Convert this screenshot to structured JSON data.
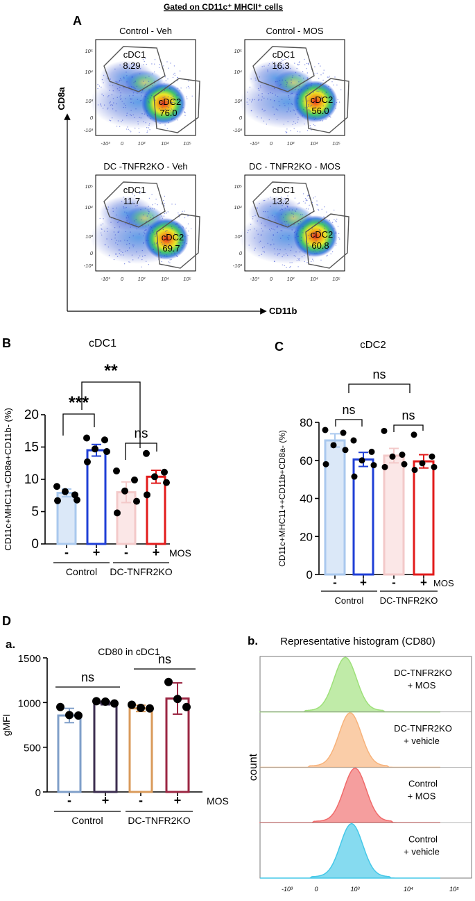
{
  "figure_title": "Gated on CD11c⁺ MHCII⁺ cells",
  "panels": {
    "A": "A",
    "B": "B",
    "C": "C",
    "D": "D",
    "Da": "a.",
    "Db": "b."
  },
  "colors": {
    "control_veh": "#a9c8ee",
    "control_mos": "#1f3fd6",
    "ko_veh": "#f3c9c9",
    "ko_mos": "#e21b1b",
    "d_control_veh": "#7f9fc9",
    "d_control_mos": "#3b2d4f",
    "d_ko_veh": "#d99a5a",
    "d_ko_mos": "#9b2642"
  },
  "chart_data": [
    {
      "type": "scatter",
      "panel": "A",
      "title": "Gated on CD11c⁺ MHCII⁺ cells",
      "xlabel": "CD11b",
      "ylabel": "CD8a",
      "x_ticks": [
        "-10³",
        "0",
        "10³",
        "10⁴",
        "10⁵"
      ],
      "y_ticks": [
        "10⁵",
        "10⁴",
        "10³",
        "0",
        "-10³"
      ],
      "plots": [
        {
          "title": "Control - Veh",
          "gates": [
            {
              "name": "cDC1",
              "value": "8.29"
            },
            {
              "name": "cDC2",
              "value": "76.0"
            }
          ]
        },
        {
          "title": "Control - MOS",
          "gates": [
            {
              "name": "cDC1",
              "value": "16.3"
            },
            {
              "name": "cDC2",
              "value": "56.0"
            }
          ]
        },
        {
          "title": "DC -TNFR2KO - Veh",
          "gates": [
            {
              "name": "cDC1",
              "value": "11.7"
            },
            {
              "name": "cDC2",
              "value": "69.7"
            }
          ]
        },
        {
          "title": "DC - TNFR2KO - MOS",
          "gates": [
            {
              "name": "cDC1",
              "value": "13.2"
            },
            {
              "name": "cDC2",
              "value": "60.8"
            }
          ]
        }
      ]
    },
    {
      "type": "bar",
      "panel": "B",
      "title": "cDC1",
      "ylabel": "CD11c+MHC11+CD8a+CD11b- (%)",
      "ylim": [
        0,
        20
      ],
      "yticks": [
        0,
        5,
        10,
        15,
        20
      ],
      "mos_row": [
        "-",
        "+",
        "-",
        "+"
      ],
      "mos_label": "MOS",
      "groups": [
        "Control",
        "DC-TNFR2KO"
      ],
      "bars": [
        {
          "value": 7.9,
          "sem": 0.6,
          "points": [
            8.9,
            7.6,
            8.1,
            6.8,
            6.7
          ]
        },
        {
          "value": 14.5,
          "sem": 0.9,
          "points": [
            16.4,
            16.1,
            14.7,
            14.3,
            12.7
          ]
        },
        {
          "value": 8.0,
          "sem": 1.6,
          "points": [
            11.3,
            9.9,
            8.2,
            6.6,
            4.8
          ]
        },
        {
          "value": 10.4,
          "sem": 1.0,
          "points": [
            14.0,
            11.1,
            10.4,
            9.5,
            7.6
          ]
        }
      ],
      "significance": [
        {
          "label": "***",
          "from": 0,
          "to": 1
        },
        {
          "label": "ns",
          "from": 2,
          "to": 3
        },
        {
          "label": "**",
          "from": "1.5",
          "to": "2.5"
        }
      ]
    },
    {
      "type": "bar",
      "panel": "C",
      "title": "cDC2",
      "ylabel": "CD11c+MHC11++CD11b+CD8a- (%)",
      "ylim": [
        0,
        80
      ],
      "yticks": [
        0,
        20,
        40,
        60,
        80
      ],
      "mos_row": [
        "-",
        "+",
        "-",
        "+"
      ],
      "mos_label": "MOS",
      "groups": [
        "Control",
        "DC-TNFR2KO"
      ],
      "bars": [
        {
          "value": 70.5,
          "sem": 3.5,
          "points": [
            76.0,
            74.5,
            68.0,
            65.5,
            58.0
          ]
        },
        {
          "value": 60.5,
          "sem": 3.7,
          "points": [
            70.5,
            64.5,
            60.0,
            57.5,
            51.5
          ]
        },
        {
          "value": 62.5,
          "sem": 3.8,
          "points": [
            75.5,
            63.0,
            62.0,
            58.0,
            56.5
          ]
        },
        {
          "value": 59.5,
          "sem": 3.5,
          "points": [
            73.5,
            62.0,
            58.5,
            56.5,
            55.0
          ]
        }
      ],
      "significance": [
        {
          "label": "ns",
          "from": 0,
          "to": 1
        },
        {
          "label": "ns",
          "from": 2,
          "to": 3
        },
        {
          "label": "ns",
          "from": "0.5",
          "to": "2.5"
        }
      ]
    },
    {
      "type": "bar",
      "panel": "D.a",
      "title": "CD80 in cDC1",
      "ylabel": "gMFI",
      "ylim": [
        0,
        1500
      ],
      "yticks": [
        0,
        500,
        1000,
        1500
      ],
      "mos_row": [
        "-",
        "+",
        "-",
        "+"
      ],
      "mos_label": "MOS",
      "groups": [
        "Control",
        "DC-TNFR2KO"
      ],
      "bars": [
        {
          "value": 855,
          "sd": 80,
          "points": [
            950,
            860,
            855
          ]
        },
        {
          "value": 995,
          "sd": 20,
          "points": [
            1015,
            1010,
            990
          ]
        },
        {
          "value": 935,
          "sd": 35,
          "points": [
            975,
            940,
            935
          ]
        },
        {
          "value": 1045,
          "sd": 175,
          "points": [
            1230,
            1040,
            950
          ]
        }
      ],
      "significance": [
        {
          "label": "ns",
          "from": 0,
          "to": 1
        },
        {
          "label": "ns",
          "from": 2,
          "to": 3
        }
      ]
    },
    {
      "type": "area",
      "panel": "D.b",
      "title": "Representative histogram (CD80)",
      "ylabel": "count",
      "x_ticks": [
        "-10³",
        "0",
        "10³",
        "10⁴",
        "10⁵"
      ],
      "tracks": [
        {
          "name": "DC-TNFR2KO\n+ MOS",
          "line1": "DC-TNFR2KO",
          "line2": "+ MOS",
          "color": "#9ee07a"
        },
        {
          "name": "DC-TNFR2KO\n+ vehicle",
          "line1": "DC-TNFR2KO",
          "line2": " + vehicle",
          "color": "#f7b27a"
        },
        {
          "name": "Control\n+ MOS",
          "line1": "Control",
          "line2": "+ MOS",
          "color": "#f06a6a"
        },
        {
          "name": "Control\n+ vehicle",
          "line1": "Control",
          "line2": " + vehicle",
          "color": "#45c8e8"
        }
      ]
    }
  ]
}
